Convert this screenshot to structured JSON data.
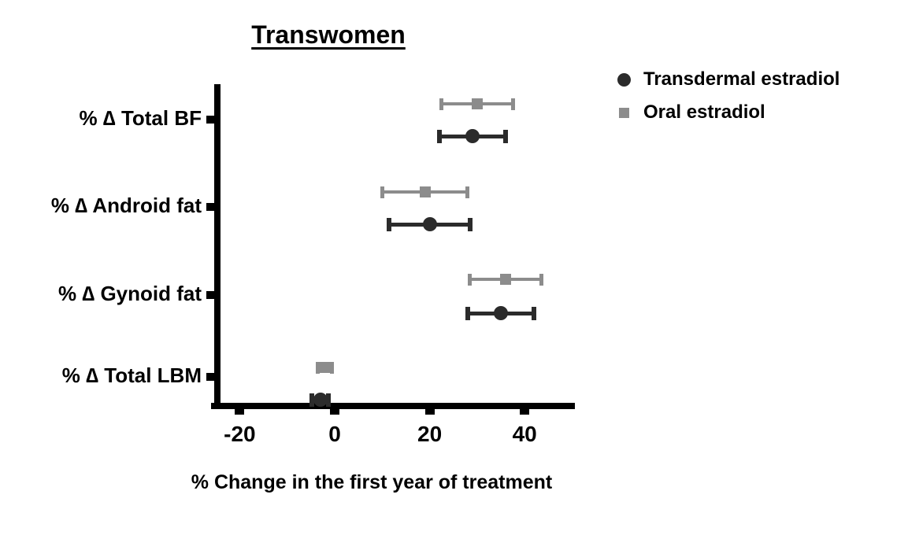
{
  "figure": {
    "title": "Transwomen",
    "x_axis_label": "% Change in the first year of treatment"
  },
  "legend": {
    "items": [
      {
        "label": "Transdermal estradiol",
        "marker": "circle",
        "color": "#2b2b2b"
      },
      {
        "label": "Oral estradiol",
        "marker": "square",
        "color": "#8c8c8c"
      }
    ]
  },
  "chart_data": {
    "type": "scatter",
    "subtype": "horizontal dot plot with error bars (forest plot)",
    "title": "Transwomen",
    "xlabel": "% Change in the first year of treatment",
    "ylabel": "",
    "categories": [
      "% ∆ Total BF",
      "% ∆ Android fat",
      "% ∆ Gynoid fat",
      "% ∆ Total LBM"
    ],
    "x_ticks": [
      -20,
      0,
      20,
      40
    ],
    "xlim": [
      -26,
      51
    ],
    "grid": false,
    "legend_position": "top-right",
    "series": [
      {
        "name": "Transdermal estradiol",
        "marker": "circle",
        "color": "#2b2b2b",
        "values": [
          29,
          20,
          35,
          -3
        ],
        "ci_low": [
          22,
          11.5,
          28,
          -4.8
        ],
        "ci_high": [
          36,
          28.5,
          42,
          -1.4
        ]
      },
      {
        "name": "Oral estradiol",
        "marker": "square",
        "color": "#8c8c8c",
        "values": [
          30,
          19,
          36,
          -2
        ],
        "ci_low": [
          22.5,
          10,
          28.5,
          -3.5
        ],
        "ci_high": [
          37.5,
          28,
          43.5,
          -0.5
        ]
      }
    ]
  }
}
